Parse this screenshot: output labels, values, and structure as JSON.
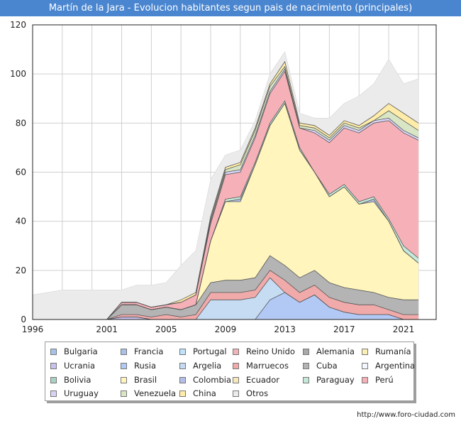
{
  "title": "Martín de la Jara - Evolucion habitantes segun pais de nacimiento (principales)",
  "credit": "http://www.foro-ciudad.com",
  "chart_data": {
    "type": "area",
    "stacked": true,
    "x": [
      1996,
      1998,
      2001,
      2002,
      2003,
      2004,
      2005,
      2006,
      2007,
      2008,
      2009,
      2010,
      2011,
      2012,
      2013,
      2014,
      2015,
      2016,
      2017,
      2018,
      2019,
      2020,
      2021,
      2022
    ],
    "x_ticks": [
      1996,
      2001,
      2005,
      2009,
      2013,
      2017,
      2021
    ],
    "y_ticks": [
      0,
      20,
      40,
      60,
      80,
      100,
      120
    ],
    "xlim": [
      1996,
      2023.2
    ],
    "ylim": [
      0,
      120
    ],
    "grid": true,
    "legend_position": "bottom",
    "series": [
      {
        "name": "Bulgaria",
        "color": "#a7c3ea",
        "values": [
          0,
          0,
          0,
          0,
          0,
          0,
          0,
          0,
          0,
          0,
          0,
          0,
          0,
          0,
          0,
          0,
          0,
          0,
          0,
          0,
          0,
          0,
          0,
          0
        ]
      },
      {
        "name": "Francia",
        "color": "#a9c1e6",
        "values": [
          0,
          0,
          0,
          0,
          0,
          0,
          0,
          0,
          0,
          0,
          0,
          0,
          0,
          0,
          0,
          0,
          0,
          0,
          0,
          0,
          0,
          0,
          0,
          0
        ]
      },
      {
        "name": "Portugal",
        "color": "#bfe3fb",
        "values": [
          0,
          0,
          0,
          0,
          0,
          0,
          0,
          0,
          0,
          0,
          0,
          0,
          0,
          0,
          0,
          0,
          0,
          0,
          0,
          0,
          0,
          0,
          0,
          0
        ]
      },
      {
        "name": "Reino Unido",
        "color": "#f0b3b7",
        "values": [
          0,
          0,
          0,
          0,
          0,
          0,
          0,
          0,
          0,
          0,
          0,
          0,
          0,
          0,
          0,
          0,
          0,
          0,
          0,
          0,
          0,
          0,
          0,
          0
        ]
      },
      {
        "name": "Alemania",
        "color": "#a9a9a9",
        "values": [
          0,
          0,
          0,
          0,
          0,
          0,
          0,
          0,
          0,
          0,
          0,
          0,
          0,
          0,
          0,
          0,
          0,
          0,
          0,
          0,
          0,
          0,
          0,
          0
        ]
      },
      {
        "name": "Rumanía",
        "color": "#fbf0b3",
        "values": [
          0,
          0,
          0,
          0,
          0,
          0,
          0,
          0,
          0,
          0,
          0,
          0,
          0,
          0,
          0,
          0,
          0,
          0,
          0,
          0,
          0,
          0,
          0,
          0
        ]
      },
      {
        "name": "Ucrania",
        "color": "#c9c1ee",
        "values": [
          0,
          0,
          0,
          1,
          1,
          0,
          0,
          0,
          0,
          0,
          0,
          0,
          0,
          0,
          0,
          0,
          0,
          0,
          0,
          0,
          0,
          0,
          0,
          0
        ]
      },
      {
        "name": "Rusia",
        "color": "#b3c9f5",
        "values": [
          0,
          0,
          0,
          0,
          0,
          0,
          0,
          0,
          0,
          0,
          0,
          0,
          0,
          8,
          11,
          7,
          10,
          5,
          3,
          2,
          2,
          2,
          0,
          0
        ]
      },
      {
        "name": "Argelia",
        "color": "#c6dcf3",
        "values": [
          0,
          0,
          0,
          0,
          0,
          0,
          0,
          0,
          0,
          8,
          8,
          8,
          9,
          9,
          0,
          0,
          0,
          0,
          0,
          0,
          0,
          0,
          0,
          0
        ]
      },
      {
        "name": "Marruecos",
        "color": "#f1aaaa",
        "values": [
          0,
          0,
          0,
          1,
          1,
          1,
          2,
          1,
          2,
          3,
          3,
          3,
          3,
          3,
          5,
          4,
          4,
          4,
          4,
          4,
          4,
          2,
          2,
          2
        ]
      },
      {
        "name": "Cuba",
        "color": "#b4b4b4",
        "values": [
          0,
          0,
          0,
          4,
          4,
          3,
          3,
          3,
          4,
          4,
          5,
          5,
          5,
          6,
          6,
          6,
          6,
          6,
          6,
          6,
          5,
          5,
          6,
          6
        ]
      },
      {
        "name": "Argentina",
        "color": "#f4f7ff",
        "values": [
          0,
          0,
          0,
          0,
          0,
          0,
          0,
          0,
          0,
          0,
          0,
          0,
          0,
          0,
          0,
          0,
          0,
          0,
          0,
          0,
          0,
          0,
          0,
          0
        ]
      },
      {
        "name": "Bolivia",
        "color": "#a9d3c1",
        "values": [
          0,
          0,
          0,
          0,
          0,
          0,
          0,
          0,
          0,
          0,
          0,
          0,
          0,
          0,
          0,
          0,
          0,
          0,
          0,
          0,
          0,
          0,
          0,
          0
        ]
      },
      {
        "name": "Brasil",
        "color": "#fff5bd",
        "values": [
          0,
          0,
          0,
          0,
          0,
          0,
          0,
          0,
          0,
          17,
          32,
          32,
          46,
          53,
          66,
          52,
          40,
          35,
          41,
          35,
          37,
          31,
          20,
          15
        ]
      },
      {
        "name": "Colombia",
        "color": "#b3bfe8",
        "values": [
          0,
          0,
          0,
          0,
          0,
          0,
          0,
          0,
          0,
          0,
          0,
          1,
          0,
          0,
          0,
          0,
          0,
          0,
          0,
          0,
          1,
          0,
          0,
          0
        ]
      },
      {
        "name": "Ecuador",
        "color": "#f7e8b5",
        "values": [
          0,
          0,
          0,
          0,
          0,
          0,
          0,
          0,
          0,
          0,
          0,
          0,
          0,
          0,
          0,
          0,
          0,
          0,
          0,
          0,
          0,
          0,
          0,
          0
        ]
      },
      {
        "name": "Paraguay",
        "color": "#c4e9d8",
        "values": [
          0,
          0,
          0,
          0,
          0,
          0,
          0,
          0,
          0,
          0,
          1,
          1,
          1,
          1,
          1,
          1,
          0,
          1,
          1,
          1,
          1,
          1,
          2,
          2
        ]
      },
      {
        "name": "Perú",
        "color": "#f6b1b8",
        "values": [
          0,
          0,
          0,
          1,
          1,
          1,
          1,
          3,
          4,
          7,
          10,
          10,
          10,
          12,
          12,
          8,
          16,
          21,
          23,
          28,
          30,
          40,
          46,
          48
        ]
      },
      {
        "name": "Uruguay",
        "color": "#d9d4f6",
        "values": [
          0,
          0,
          0,
          0,
          0,
          0,
          0,
          0,
          0,
          1,
          1,
          1,
          1,
          1,
          1,
          0,
          1,
          1,
          1,
          1,
          1,
          1,
          1,
          1
        ]
      },
      {
        "name": "Venezuela",
        "color": "#d8e6c5",
        "values": [
          0,
          0,
          0,
          0,
          0,
          0,
          0,
          0,
          0,
          1,
          1,
          2,
          2,
          2,
          1,
          1,
          1,
          1,
          1,
          1,
          0,
          3,
          4,
          3
        ]
      },
      {
        "name": "China",
        "color": "#ffeca9",
        "values": [
          0,
          0,
          0,
          0,
          0,
          0,
          0,
          1,
          1,
          1,
          1,
          1,
          1,
          1,
          2,
          1,
          1,
          1,
          1,
          1,
          2,
          3,
          3,
          3
        ]
      },
      {
        "name": "Otros",
        "color": "#ebebeb",
        "values": [
          10,
          12,
          12,
          5,
          7,
          9,
          9,
          14,
          17,
          15,
          5,
          5,
          3,
          4,
          4,
          4,
          3,
          7,
          7,
          12,
          13,
          18,
          12,
          18
        ]
      }
    ]
  }
}
